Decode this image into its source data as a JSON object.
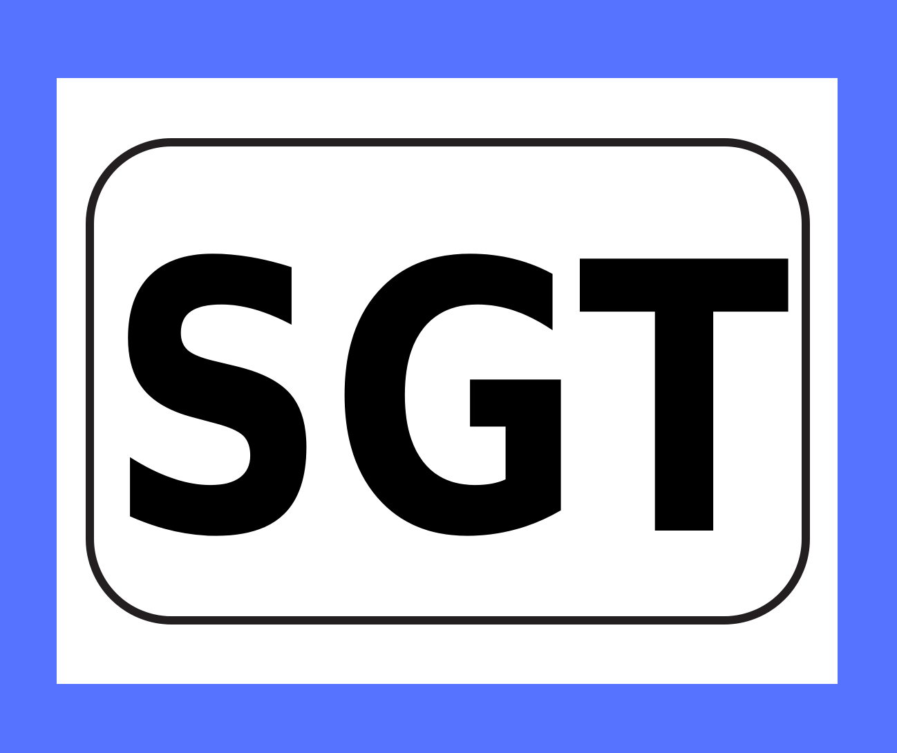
{
  "label": {
    "text": "SGT"
  },
  "colors": {
    "background": "#5573ff",
    "panel": "#ffffff",
    "border": "#231f20",
    "text": "#000000"
  }
}
